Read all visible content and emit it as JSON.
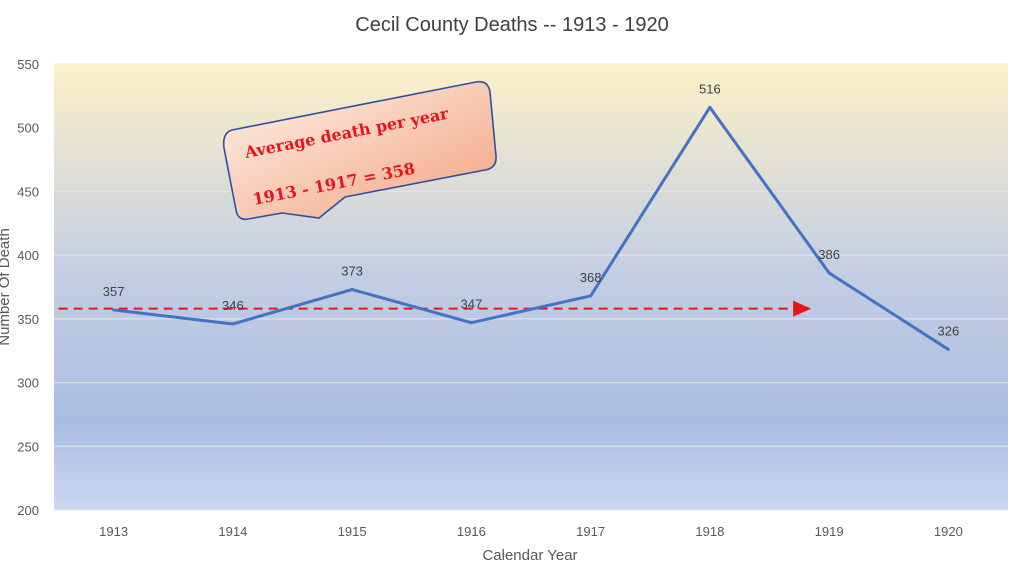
{
  "chart_data": {
    "type": "line",
    "title": "Cecil County Deaths -- 1913 - 1920",
    "xlabel": "Calendar Year",
    "ylabel": "Number Of Death",
    "categories": [
      "1913",
      "1914",
      "1915",
      "1916",
      "1917",
      "1918",
      "1919",
      "1920"
    ],
    "values": [
      357,
      346,
      373,
      347,
      368,
      516,
      386,
      326
    ],
    "data_labels": [
      "357",
      "346",
      "373",
      "347",
      "368",
      "516",
      "386",
      "326"
    ],
    "ylim": [
      200,
      550
    ],
    "yticks": [
      200,
      250,
      300,
      350,
      400,
      450,
      500,
      550
    ],
    "grid": true,
    "colors": {
      "line": "#4472c4",
      "average": "#e8141b",
      "callout_fill": "#f2a98a",
      "callout_border": "#2f4f9f"
    },
    "average_line": {
      "value": 358,
      "from": "1913",
      "to": "1919"
    },
    "annotation": {
      "line1": "Average death per year",
      "line2": "1913 - 1917  = 358"
    }
  }
}
